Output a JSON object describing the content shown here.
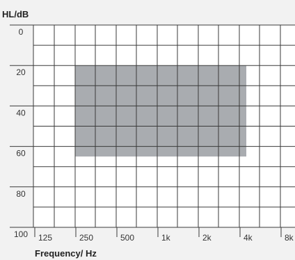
{
  "chart_data": {
    "type": "area",
    "title": "",
    "ylabel": "HL/dB",
    "xlabel": "Frequency/ Hz",
    "y_ticks": [
      "0",
      "20",
      "40",
      "60",
      "80",
      "100"
    ],
    "y_tick_values": [
      0,
      20,
      40,
      60,
      80,
      100
    ],
    "ylim": [
      0,
      100
    ],
    "y_inverted": true,
    "x_ticks": [
      "125",
      "250",
      "500",
      "1k",
      "2k",
      "4k",
      "8k"
    ],
    "x_scale": "log",
    "grid": true,
    "region": {
      "x_from_hz": 250,
      "x_to_hz": 4500,
      "y_from_db": 20,
      "y_to_db": 65
    },
    "colors": {
      "background": "#f2f2f2",
      "plot_background": "#ffffff",
      "region_fill": "#a9acb0",
      "grid": "#3a3a3a"
    }
  }
}
